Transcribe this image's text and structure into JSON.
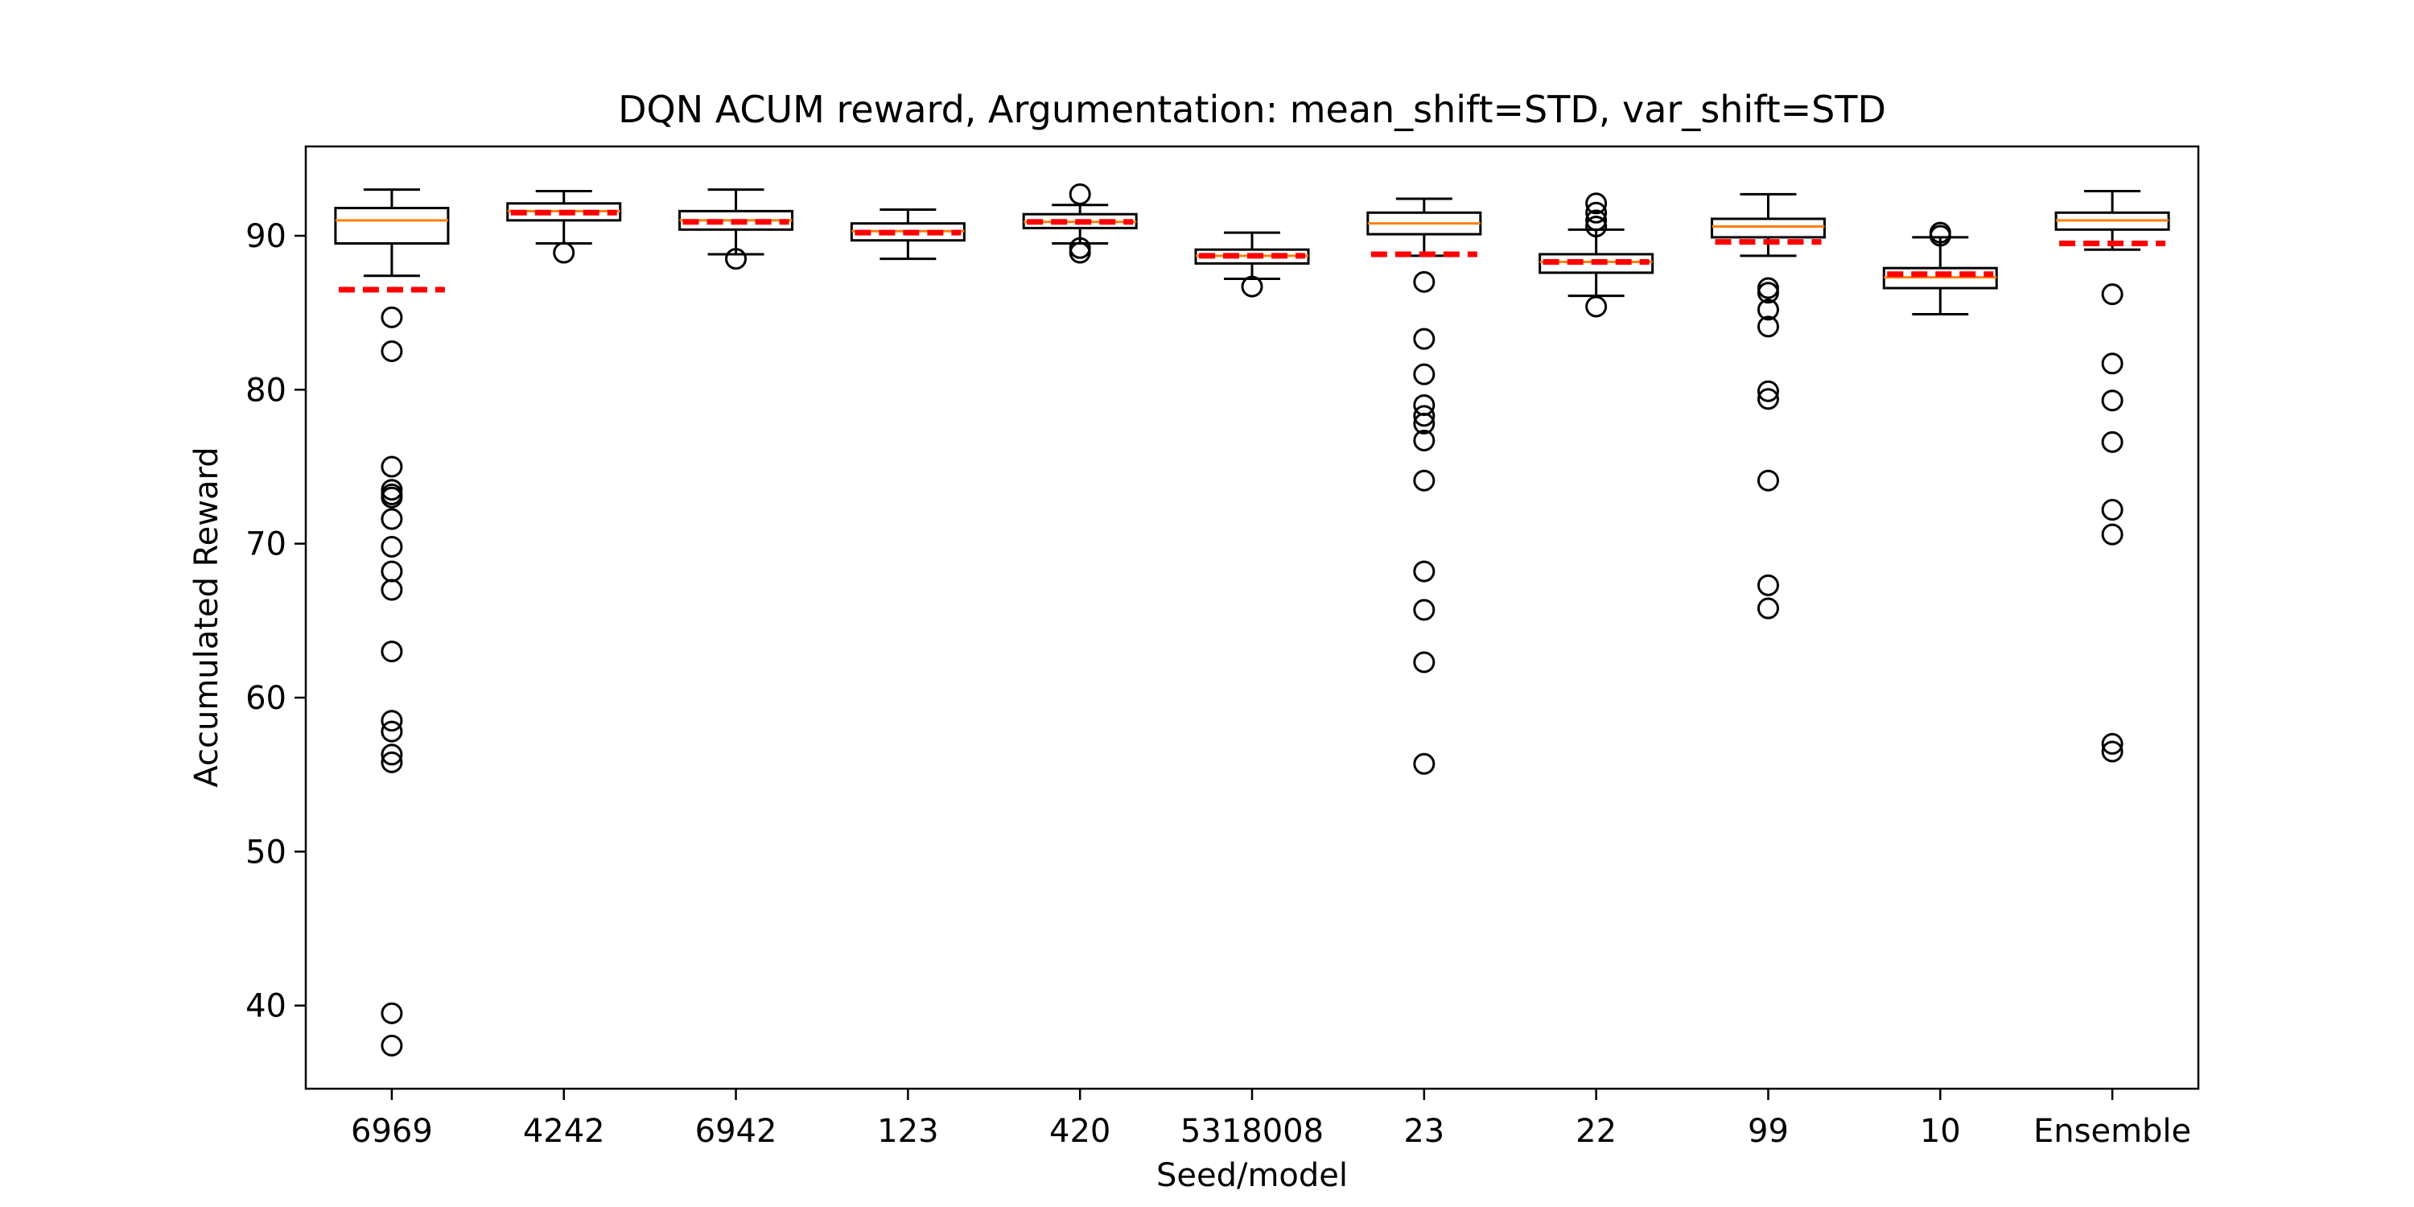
{
  "chart_data": {
    "type": "boxplot",
    "title": "DQN ACUM reward, Argumentation: mean_shift=STD, var_shift=STD",
    "xlabel": "Seed/model",
    "ylabel": "Accumulated Reward",
    "ylim": [
      34.6,
      95.8
    ],
    "yticks": [
      40,
      50,
      60,
      70,
      80,
      90
    ],
    "grid": false,
    "colors": {
      "box": "#000000",
      "median": "#ff7f0e",
      "mean": "#ff0000"
    },
    "categories": [
      "6969",
      "4242",
      "6942",
      "123",
      "420",
      "5318008",
      "23",
      "22",
      "99",
      "10",
      "Ensemble"
    ],
    "boxes": [
      {
        "label": "6969",
        "whislo": 87.4,
        "q1": 89.5,
        "med": 91.0,
        "q3": 91.8,
        "whishi": 93.0,
        "mean": 86.5,
        "fliers": [
          84.7,
          82.5,
          75.0,
          73.5,
          73.2,
          73.0,
          71.6,
          69.8,
          68.2,
          67.0,
          63.0,
          58.5,
          57.8,
          56.3,
          55.8,
          39.5,
          37.4
        ]
      },
      {
        "label": "4242",
        "whislo": 89.5,
        "q1": 91.0,
        "med": 91.6,
        "q3": 92.1,
        "whishi": 92.9,
        "mean": 91.5,
        "fliers": [
          88.9
        ]
      },
      {
        "label": "6942",
        "whislo": 88.8,
        "q1": 90.4,
        "med": 91.0,
        "q3": 91.6,
        "whishi": 93.0,
        "mean": 90.9,
        "fliers": [
          88.5
        ]
      },
      {
        "label": "123",
        "whislo": 88.5,
        "q1": 89.7,
        "med": 90.3,
        "q3": 90.8,
        "whishi": 91.7,
        "mean": 90.2,
        "fliers": []
      },
      {
        "label": "420",
        "whislo": 89.5,
        "q1": 90.5,
        "med": 90.9,
        "q3": 91.4,
        "whishi": 92.0,
        "mean": 90.9,
        "fliers": [
          92.7,
          89.2,
          88.9
        ]
      },
      {
        "label": "5318008",
        "whislo": 87.2,
        "q1": 88.2,
        "med": 88.7,
        "q3": 89.1,
        "whishi": 90.2,
        "mean": 88.7,
        "fliers": [
          86.7
        ]
      },
      {
        "label": "23",
        "whislo": 88.7,
        "q1": 90.1,
        "med": 90.8,
        "q3": 91.5,
        "whishi": 92.4,
        "mean": 88.8,
        "fliers": [
          87.0,
          83.3,
          81.0,
          79.0,
          78.3,
          77.8,
          76.7,
          74.1,
          68.2,
          65.7,
          62.3,
          55.7
        ]
      },
      {
        "label": "22",
        "whislo": 86.1,
        "q1": 87.6,
        "med": 88.3,
        "q3": 88.8,
        "whishi": 90.4,
        "mean": 88.3,
        "fliers": [
          92.1,
          91.5,
          91.0,
          90.6,
          85.4
        ]
      },
      {
        "label": "99",
        "whislo": 88.7,
        "q1": 89.9,
        "med": 90.6,
        "q3": 91.1,
        "whishi": 92.7,
        "mean": 89.6,
        "fliers": [
          86.6,
          86.3,
          85.2,
          84.1,
          79.9,
          79.4,
          74.1,
          67.3,
          65.8
        ]
      },
      {
        "label": "10",
        "whislo": 84.9,
        "q1": 86.6,
        "med": 87.3,
        "q3": 87.9,
        "whishi": 89.9,
        "mean": 87.5,
        "fliers": [
          90.2,
          90.0
        ]
      },
      {
        "label": "Ensemble",
        "whislo": 89.1,
        "q1": 90.4,
        "med": 91.0,
        "q3": 91.5,
        "whishi": 92.9,
        "mean": 89.5,
        "fliers": [
          86.2,
          81.7,
          79.3,
          76.6,
          72.2,
          70.6,
          57.0,
          56.5
        ]
      }
    ]
  }
}
